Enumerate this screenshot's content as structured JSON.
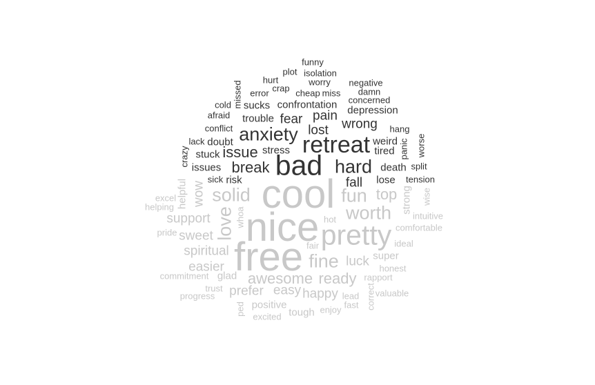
{
  "colors": {
    "negative": "#333333",
    "positive": "#c8c8c8",
    "background": "#ffffff"
  },
  "words": [
    {
      "text": "funny",
      "sentiment": "negative",
      "weight": 1
    },
    {
      "text": "plot",
      "sentiment": "negative",
      "weight": 1
    },
    {
      "text": "isolation",
      "sentiment": "negative",
      "weight": 1
    },
    {
      "text": "hurt",
      "sentiment": "negative",
      "weight": 1
    },
    {
      "text": "worry",
      "sentiment": "negative",
      "weight": 1
    },
    {
      "text": "negative",
      "sentiment": "negative",
      "weight": 1
    },
    {
      "text": "missed",
      "sentiment": "negative",
      "weight": 1
    },
    {
      "text": "crap",
      "sentiment": "negative",
      "weight": 1
    },
    {
      "text": "error",
      "sentiment": "negative",
      "weight": 1
    },
    {
      "text": "cheap",
      "sentiment": "negative",
      "weight": 1
    },
    {
      "text": "miss",
      "sentiment": "negative",
      "weight": 1
    },
    {
      "text": "damn",
      "sentiment": "negative",
      "weight": 1
    },
    {
      "text": "concerned",
      "sentiment": "negative",
      "weight": 1
    },
    {
      "text": "cold",
      "sentiment": "negative",
      "weight": 1
    },
    {
      "text": "sucks",
      "sentiment": "negative",
      "weight": 2
    },
    {
      "text": "confrontation",
      "sentiment": "negative",
      "weight": 2
    },
    {
      "text": "depression",
      "sentiment": "negative",
      "weight": 2
    },
    {
      "text": "afraid",
      "sentiment": "negative",
      "weight": 1
    },
    {
      "text": "trouble",
      "sentiment": "negative",
      "weight": 2
    },
    {
      "text": "fear",
      "sentiment": "negative",
      "weight": 3
    },
    {
      "text": "pain",
      "sentiment": "negative",
      "weight": 3
    },
    {
      "text": "wrong",
      "sentiment": "negative",
      "weight": 3
    },
    {
      "text": "conflict",
      "sentiment": "negative",
      "weight": 1
    },
    {
      "text": "anxiety",
      "sentiment": "negative",
      "weight": 5
    },
    {
      "text": "lost",
      "sentiment": "negative",
      "weight": 3
    },
    {
      "text": "hang",
      "sentiment": "negative",
      "weight": 1
    },
    {
      "text": "worse",
      "sentiment": "negative",
      "weight": 1
    },
    {
      "text": "lack",
      "sentiment": "negative",
      "weight": 1
    },
    {
      "text": "doubt",
      "sentiment": "negative",
      "weight": 2
    },
    {
      "text": "retreat",
      "sentiment": "negative",
      "weight": 6
    },
    {
      "text": "weird",
      "sentiment": "negative",
      "weight": 2
    },
    {
      "text": "panic",
      "sentiment": "negative",
      "weight": 1
    },
    {
      "text": "crazy",
      "sentiment": "negative",
      "weight": 1
    },
    {
      "text": "stuck",
      "sentiment": "negative",
      "weight": 2
    },
    {
      "text": "issue",
      "sentiment": "negative",
      "weight": 4
    },
    {
      "text": "stress",
      "sentiment": "negative",
      "weight": 2
    },
    {
      "text": "tired",
      "sentiment": "negative",
      "weight": 2
    },
    {
      "text": "issues",
      "sentiment": "negative",
      "weight": 2
    },
    {
      "text": "break",
      "sentiment": "negative",
      "weight": 4
    },
    {
      "text": "bad",
      "sentiment": "negative",
      "weight": 7
    },
    {
      "text": "hard",
      "sentiment": "negative",
      "weight": 5
    },
    {
      "text": "death",
      "sentiment": "negative",
      "weight": 2
    },
    {
      "text": "split",
      "sentiment": "negative",
      "weight": 1
    },
    {
      "text": "sick",
      "sentiment": "negative",
      "weight": 1
    },
    {
      "text": "risk",
      "sentiment": "negative",
      "weight": 2
    },
    {
      "text": "fall",
      "sentiment": "negative",
      "weight": 3
    },
    {
      "text": "lose",
      "sentiment": "negative",
      "weight": 2
    },
    {
      "text": "tension",
      "sentiment": "negative",
      "weight": 1
    },
    {
      "text": "helpful",
      "sentiment": "positive",
      "weight": 2
    },
    {
      "text": "wow",
      "sentiment": "positive",
      "weight": 3
    },
    {
      "text": "solid",
      "sentiment": "positive",
      "weight": 5
    },
    {
      "text": "cool",
      "sentiment": "positive",
      "weight": 9
    },
    {
      "text": "fun",
      "sentiment": "positive",
      "weight": 5
    },
    {
      "text": "top",
      "sentiment": "positive",
      "weight": 4
    },
    {
      "text": "strong",
      "sentiment": "positive",
      "weight": 2
    },
    {
      "text": "wise",
      "sentiment": "positive",
      "weight": 1
    },
    {
      "text": "excel",
      "sentiment": "positive",
      "weight": 1
    },
    {
      "text": "helping",
      "sentiment": "positive",
      "weight": 1
    },
    {
      "text": "worth",
      "sentiment": "positive",
      "weight": 5
    },
    {
      "text": "intuitive",
      "sentiment": "positive",
      "weight": 1
    },
    {
      "text": "support",
      "sentiment": "positive",
      "weight": 3
    },
    {
      "text": "love",
      "sentiment": "positive",
      "weight": 5
    },
    {
      "text": "whoa",
      "sentiment": "positive",
      "weight": 1
    },
    {
      "text": "nice",
      "sentiment": "positive",
      "weight": 9
    },
    {
      "text": "hot",
      "sentiment": "positive",
      "weight": 1
    },
    {
      "text": "comfortable",
      "sentiment": "positive",
      "weight": 1
    },
    {
      "text": "pride",
      "sentiment": "positive",
      "weight": 1
    },
    {
      "text": "sweet",
      "sentiment": "positive",
      "weight": 3
    },
    {
      "text": "pretty",
      "sentiment": "positive",
      "weight": 7
    },
    {
      "text": "ideal",
      "sentiment": "positive",
      "weight": 1
    },
    {
      "text": "spiritual",
      "sentiment": "positive",
      "weight": 3
    },
    {
      "text": "free",
      "sentiment": "positive",
      "weight": 9
    },
    {
      "text": "fair",
      "sentiment": "positive",
      "weight": 1
    },
    {
      "text": "fine",
      "sentiment": "positive",
      "weight": 5
    },
    {
      "text": "super",
      "sentiment": "positive",
      "weight": 2
    },
    {
      "text": "easier",
      "sentiment": "positive",
      "weight": 3
    },
    {
      "text": "luck",
      "sentiment": "positive",
      "weight": 3
    },
    {
      "text": "honest",
      "sentiment": "positive",
      "weight": 1
    },
    {
      "text": "commitment",
      "sentiment": "positive",
      "weight": 1
    },
    {
      "text": "glad",
      "sentiment": "positive",
      "weight": 2
    },
    {
      "text": "awesome",
      "sentiment": "positive",
      "weight": 4
    },
    {
      "text": "ready",
      "sentiment": "positive",
      "weight": 4
    },
    {
      "text": "rapport",
      "sentiment": "positive",
      "weight": 1
    },
    {
      "text": "trust",
      "sentiment": "positive",
      "weight": 1
    },
    {
      "text": "progress",
      "sentiment": "positive",
      "weight": 1
    },
    {
      "text": "prefer",
      "sentiment": "positive",
      "weight": 3
    },
    {
      "text": "easy",
      "sentiment": "positive",
      "weight": 3
    },
    {
      "text": "happy",
      "sentiment": "positive",
      "weight": 3
    },
    {
      "text": "lead",
      "sentiment": "positive",
      "weight": 1
    },
    {
      "text": "correct",
      "sentiment": "positive",
      "weight": 1
    },
    {
      "text": "valuable",
      "sentiment": "positive",
      "weight": 1
    },
    {
      "text": "positive",
      "sentiment": "positive",
      "weight": 2
    },
    {
      "text": "fast",
      "sentiment": "positive",
      "weight": 1
    },
    {
      "text": "ped",
      "sentiment": "positive",
      "weight": 1
    },
    {
      "text": "excited",
      "sentiment": "positive",
      "weight": 1
    },
    {
      "text": "tough",
      "sentiment": "positive",
      "weight": 2
    },
    {
      "text": "enjoy",
      "sentiment": "positive",
      "weight": 1
    }
  ]
}
